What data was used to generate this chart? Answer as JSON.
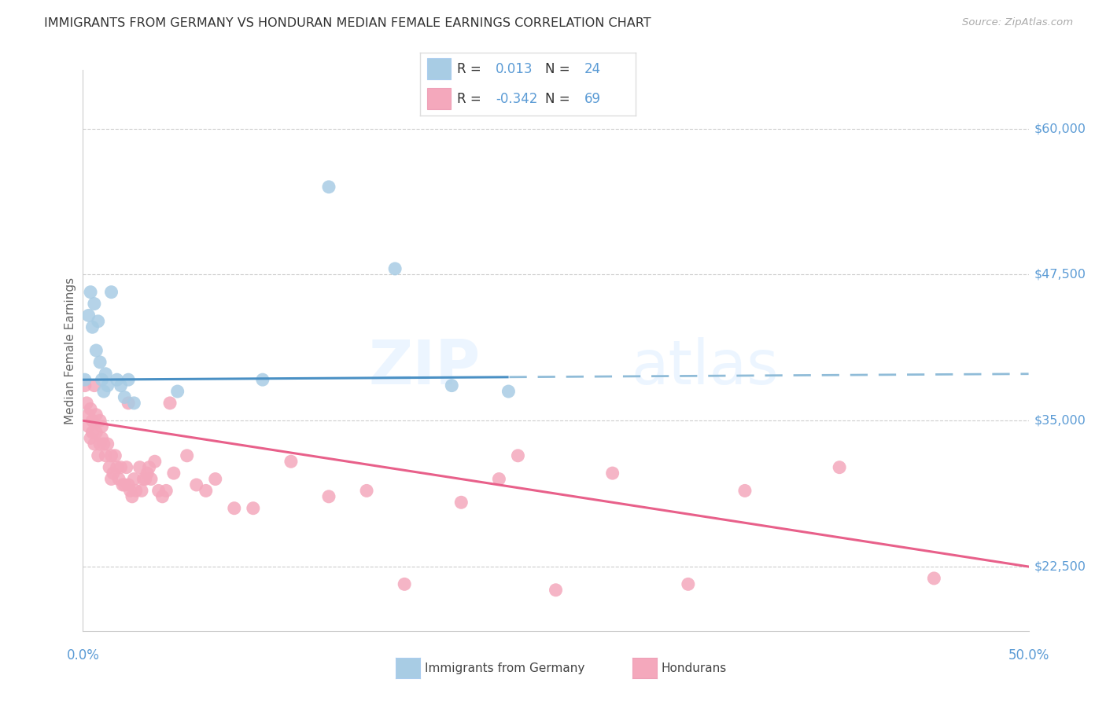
{
  "title": "IMMIGRANTS FROM GERMANY VS HONDURAN MEDIAN FEMALE EARNINGS CORRELATION CHART",
  "source": "Source: ZipAtlas.com",
  "ylabel": "Median Female Earnings",
  "yticks": [
    22500,
    35000,
    47500,
    60000
  ],
  "ytick_labels": [
    "$22,500",
    "$35,000",
    "$47,500",
    "$60,000"
  ],
  "xmin": 0.0,
  "xmax": 0.5,
  "ymin": 17000,
  "ymax": 65000,
  "R_germany": "0.013",
  "N_germany": "24",
  "R_honduran": "-0.342",
  "N_honduran": "69",
  "color_germany_fill": "#a8cce4",
  "color_germany_line": "#4a90c4",
  "color_germany_dash": "#90bcd8",
  "color_honduran_fill": "#f4a8bc",
  "color_honduran_line": "#e8608a",
  "color_blue_text": "#5b9bd5",
  "color_pink_text": "#e05080",
  "color_dark_text": "#333333",
  "color_label": "#666666",
  "germany_x": [
    0.001,
    0.003,
    0.004,
    0.005,
    0.006,
    0.007,
    0.008,
    0.009,
    0.01,
    0.011,
    0.012,
    0.013,
    0.015,
    0.018,
    0.02,
    0.022,
    0.024,
    0.027,
    0.05,
    0.095,
    0.13,
    0.165,
    0.195,
    0.225
  ],
  "germany_y": [
    38500,
    44000,
    46000,
    43000,
    45000,
    41000,
    43500,
    40000,
    38500,
    37500,
    39000,
    38000,
    46000,
    38500,
    38000,
    37000,
    38500,
    36500,
    37500,
    38500,
    55000,
    48000,
    38000,
    37500
  ],
  "honduran_x": [
    0.001,
    0.002,
    0.003,
    0.003,
    0.004,
    0.004,
    0.005,
    0.005,
    0.006,
    0.006,
    0.007,
    0.007,
    0.008,
    0.009,
    0.009,
    0.01,
    0.01,
    0.011,
    0.012,
    0.013,
    0.014,
    0.015,
    0.015,
    0.016,
    0.017,
    0.018,
    0.019,
    0.02,
    0.021,
    0.022,
    0.023,
    0.024,
    0.024,
    0.025,
    0.026,
    0.027,
    0.028,
    0.03,
    0.031,
    0.032,
    0.033,
    0.034,
    0.035,
    0.036,
    0.038,
    0.04,
    0.042,
    0.044,
    0.046,
    0.048,
    0.055,
    0.06,
    0.065,
    0.07,
    0.08,
    0.09,
    0.11,
    0.13,
    0.15,
    0.17,
    0.2,
    0.22,
    0.25,
    0.28,
    0.32,
    0.35,
    0.4,
    0.45,
    0.23
  ],
  "honduran_y": [
    38000,
    36500,
    35500,
    34500,
    36000,
    33500,
    35000,
    34000,
    38000,
    33000,
    35500,
    34000,
    32000,
    35000,
    33000,
    34500,
    33500,
    33000,
    32000,
    33000,
    31000,
    30000,
    32000,
    30500,
    32000,
    31000,
    30000,
    31000,
    29500,
    29500,
    31000,
    29500,
    36500,
    29000,
    28500,
    30000,
    29000,
    31000,
    29000,
    30000,
    30000,
    30500,
    31000,
    30000,
    31500,
    29000,
    28500,
    29000,
    36500,
    30500,
    32000,
    29500,
    29000,
    30000,
    27500,
    27500,
    31500,
    28500,
    29000,
    21000,
    28000,
    30000,
    20500,
    30500,
    21000,
    29000,
    31000,
    21500,
    32000
  ]
}
